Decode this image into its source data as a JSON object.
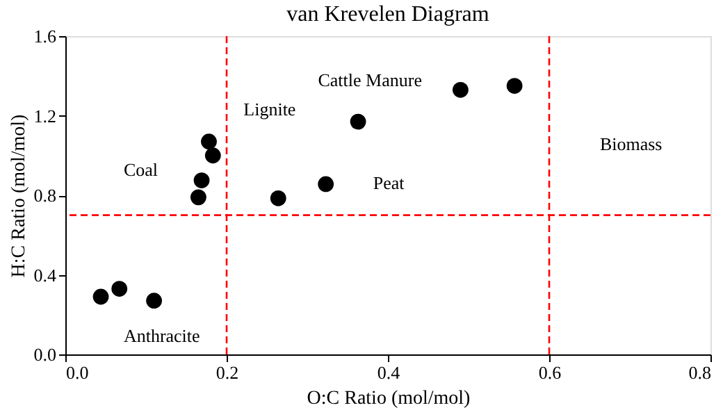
{
  "chart_data": {
    "type": "scatter",
    "title": "van Krevelen Diagram",
    "xlabel": "O:C Ratio (mol/mol)",
    "ylabel": "H:C Ratio (mol/mol)",
    "x": [
      0.044,
      0.067,
      0.11,
      0.165,
      0.169,
      0.178,
      0.183,
      0.264,
      0.323,
      0.363,
      0.49,
      0.557
    ],
    "series": [
      {
        "color": "#000000",
        "values": [
          0.29,
          0.33,
          0.27,
          0.79,
          0.875,
          1.07,
          1.0,
          0.785,
          0.856,
          1.17,
          1.33,
          1.35
        ]
      }
    ],
    "xlim": [
      0,
      0.8
    ],
    "xticks": [
      {
        "value": 0,
        "label": "0.0"
      },
      0.2,
      0.4,
      0.6,
      0.8
    ],
    "ylim": [
      0,
      1.6
    ],
    "yticks": [
      {
        "value": 0,
        "label": "0.0"
      },
      0.4,
      0.8,
      1.2,
      1.6
    ],
    "grid": false,
    "marker": "circle",
    "ref_lines": [
      {
        "axis": "x",
        "value": 0.2,
        "color": "#ff0000",
        "line_style": "dashed"
      },
      {
        "axis": "x",
        "value": 0.6,
        "color": "#ff0000",
        "line_style": "dashed"
      },
      {
        "axis": "y",
        "value": 0.7,
        "color": "#ff0000",
        "line_style": "dashed"
      }
    ],
    "annotations": [
      "Coal",
      "Anthracite",
      "Lignite",
      "Cattle Manure",
      "Peat",
      "Biomass"
    ]
  }
}
